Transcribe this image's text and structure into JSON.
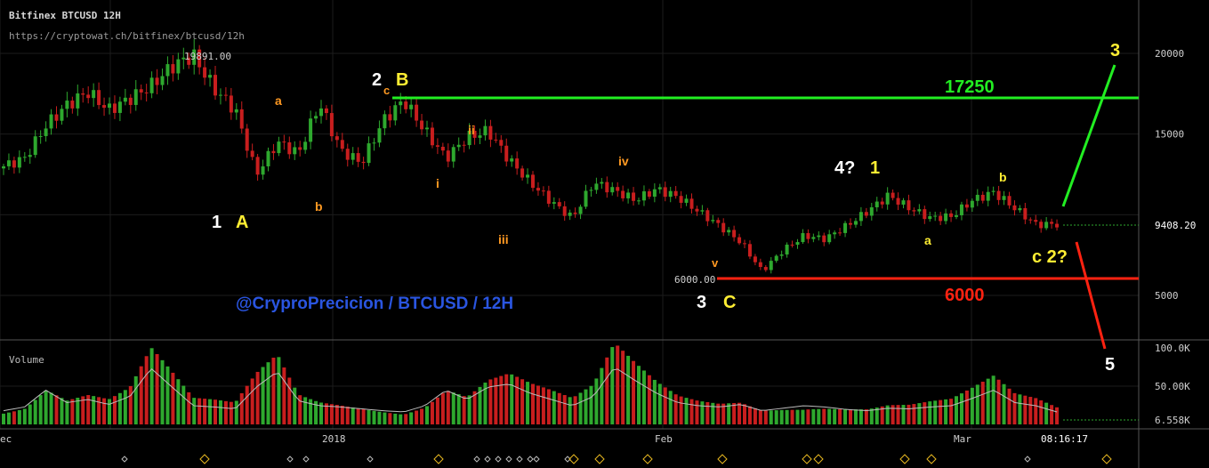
{
  "header": {
    "title": "Bitfinex BTCUSD 12H",
    "url": "https://cryptowat.ch/bitfinex/btcusd/12h"
  },
  "chart_data": {
    "type": "candlestick",
    "price_ticks": [
      "20000",
      "15000",
      "9408.20",
      "5000"
    ],
    "last_price": "9408.20",
    "volume_label": "Volume",
    "volume_ticks": [
      "100.0K",
      "50.00K",
      "6.558K"
    ],
    "x_ticks": [
      "ec",
      "2018",
      "Feb",
      "Mar",
      "08:16:17"
    ],
    "high_label": "19891.00",
    "low_label": "6000.00",
    "levels": [
      {
        "value": 17250,
        "label": "17250",
        "color": "#22ee22"
      },
      {
        "value": 6000,
        "label": "6000",
        "color": "#ff2211"
      }
    ],
    "watermark": "@CryproPrecicion / BTCUSD / 12H",
    "wave_labels": [
      {
        "text": "1",
        "color": "#ffffff"
      },
      {
        "text": "A",
        "color": "#ffee33"
      },
      {
        "text": "a",
        "color": "#ff9922"
      },
      {
        "text": "b",
        "color": "#ff9922"
      },
      {
        "text": "2",
        "color": "#ffffff"
      },
      {
        "text": "c",
        "color": "#ff9922"
      },
      {
        "text": "B",
        "color": "#ffee33"
      },
      {
        "text": "ii",
        "color": "#ff9922"
      },
      {
        "text": "i",
        "color": "#ff9922"
      },
      {
        "text": "iii",
        "color": "#ff9922"
      },
      {
        "text": "iv",
        "color": "#ff9922"
      },
      {
        "text": "v",
        "color": "#ff9922"
      },
      {
        "text": "3",
        "color": "#ffffff"
      },
      {
        "text": "C",
        "color": "#ffee33"
      },
      {
        "text": "4?",
        "color": "#ffffff"
      },
      {
        "text": "1",
        "color": "#ffee33"
      },
      {
        "text": "a",
        "color": "#ffee33"
      },
      {
        "text": "b",
        "color": "#ffee33"
      },
      {
        "text": "c 2?",
        "color": "#ffee33"
      },
      {
        "text": "3",
        "color": "#ffee33"
      },
      {
        "text": "5",
        "color": "#ffffff"
      }
    ],
    "up_color": "#2ea82e",
    "down_color": "#c81e1e",
    "close_path": [
      13000,
      13500,
      15500,
      16800,
      17600,
      16500,
      17200,
      18000,
      19200,
      19891,
      17800,
      16500,
      12500,
      14500,
      13800,
      16900,
      14000,
      13200,
      15800,
      17100,
      15200,
      13500,
      14800,
      15200,
      13400,
      12000,
      10800,
      9800,
      12000,
      11500,
      10900,
      11600,
      11100,
      10200,
      9300,
      8300,
      6500,
      7800,
      8700,
      8500,
      9300,
      10200,
      11200,
      10400,
      9800,
      9900,
      10900,
      11400,
      10400,
      9400,
      9408
    ],
    "volume_profile": [
      22,
      28,
      55,
      35,
      40,
      32,
      45,
      90,
      60,
      30,
      28,
      25,
      60,
      85,
      38,
      30,
      28,
      25,
      22,
      20,
      30,
      55,
      40,
      60,
      65,
      50,
      40,
      30,
      45,
      92,
      70,
      50,
      35,
      30,
      28,
      32,
      22,
      26,
      30,
      28,
      24,
      22,
      26,
      25,
      28,
      30,
      42,
      55,
      35,
      30,
      20
    ]
  }
}
